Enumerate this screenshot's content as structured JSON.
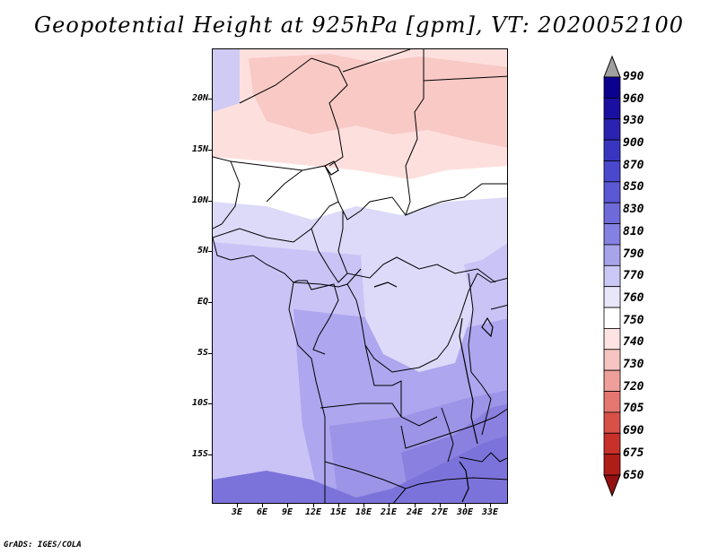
{
  "title": "Geopotential Height at 925hPa [gpm], VT: 2020052100",
  "map": {
    "lat_labels": [
      "20N",
      "15N",
      "10N",
      "5N",
      "EQ",
      "5S",
      "10S",
      "15S"
    ],
    "lon_labels": [
      "3E",
      "6E",
      "9E",
      "12E",
      "15E",
      "18E",
      "21E",
      "24E",
      "27E",
      "30E",
      "33E"
    ]
  },
  "colorbar": {
    "levels": [
      "990",
      "960",
      "930",
      "900",
      "870",
      "850",
      "830",
      "810",
      "790",
      "770",
      "760",
      "750",
      "740",
      "730",
      "720",
      "705",
      "690",
      "675",
      "650"
    ],
    "colors": [
      "#0c0090",
      "#1a0fa0",
      "#2a22b0",
      "#3a35c0",
      "#4a48cc",
      "#5b58d4",
      "#6e6ad9",
      "#8581e2",
      "#a8a4ec",
      "#cac8f4",
      "#e8e7fa",
      "#ffffff",
      "#fde4e2",
      "#f6c5c1",
      "#ee9f99",
      "#e67670",
      "#d85048",
      "#c8302a",
      "#b01c18",
      "#941010"
    ]
  },
  "credit": "GrADS: IGES/COLA"
}
